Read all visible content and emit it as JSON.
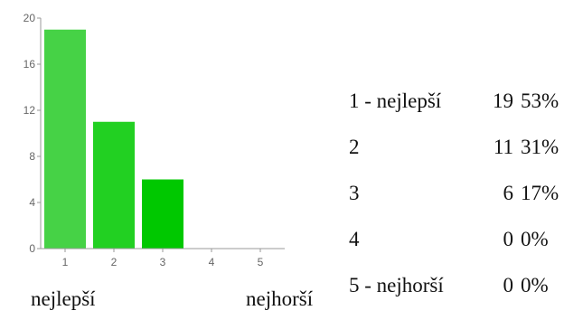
{
  "chart_data": {
    "type": "bar",
    "categories": [
      "1",
      "2",
      "3",
      "4",
      "5"
    ],
    "values": [
      19,
      11,
      6,
      0,
      0
    ],
    "bar_colors": [
      "#46d246",
      "#22d022",
      "#00c800",
      "#00c800",
      "#00c800"
    ],
    "yticks": [
      0,
      4,
      8,
      12,
      16,
      20
    ],
    "ylim": [
      0,
      20
    ],
    "title": "",
    "xlabel": "",
    "ylabel": ""
  },
  "summary": {
    "rows": [
      {
        "label": "1 - nejlepší",
        "count": "19",
        "percent": "53%"
      },
      {
        "label": "2",
        "count": "11",
        "percent": "31%"
      },
      {
        "label": "3",
        "count": "6",
        "percent": "17%"
      },
      {
        "label": "4",
        "count": "0",
        "percent": "0%"
      },
      {
        "label": "5 - nejhorší",
        "count": "0",
        "percent": "0%"
      }
    ]
  },
  "scale_labels": {
    "best": "nejlepší",
    "worst": "nejhorší"
  }
}
